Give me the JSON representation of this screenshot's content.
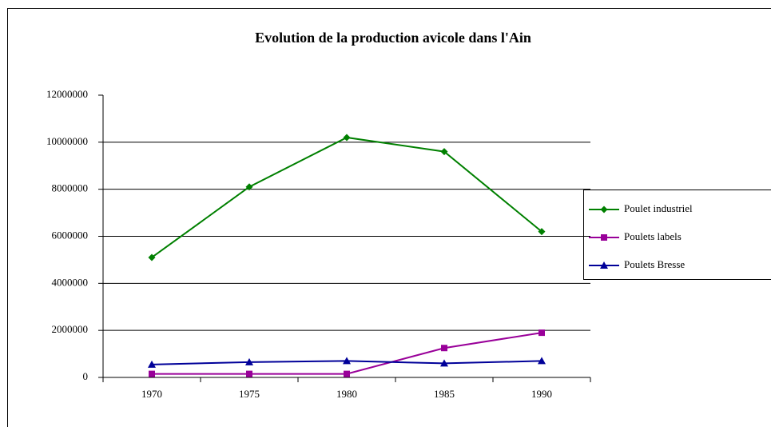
{
  "chart_data": {
    "type": "line",
    "title": "Evolution de la production avicole dans l'Ain",
    "categories": [
      "1970",
      "1975",
      "1980",
      "1985",
      "1990"
    ],
    "series": [
      {
        "name": "Poulet industriel",
        "color": "#008000",
        "marker": "diamond",
        "values": [
          5100000,
          8100000,
          10200000,
          9600000,
          6200000
        ]
      },
      {
        "name": "Poulets labels",
        "color": "#990099",
        "marker": "square",
        "values": [
          150000,
          150000,
          150000,
          1250000,
          1900000
        ]
      },
      {
        "name": "Poulets Bresse",
        "color": "#000099",
        "marker": "triangle",
        "values": [
          550000,
          650000,
          700000,
          600000,
          700000
        ]
      }
    ],
    "ylim": [
      0,
      12000000
    ],
    "yticks": [
      0,
      2000000,
      4000000,
      6000000,
      8000000,
      10000000,
      12000000
    ],
    "grid": true,
    "legend": "right"
  }
}
